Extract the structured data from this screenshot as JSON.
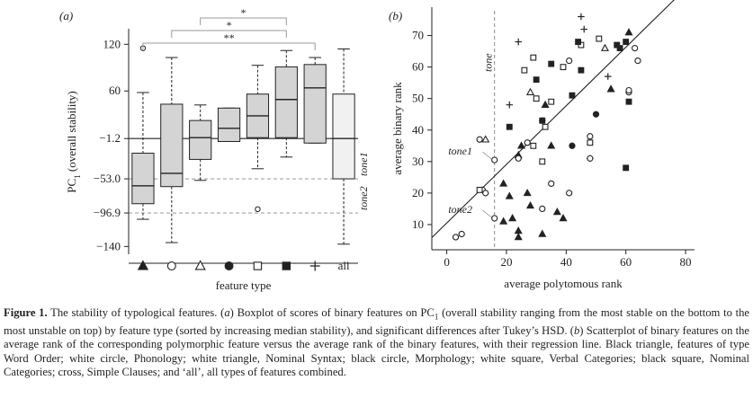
{
  "figure": {
    "caption": {
      "label": "Figure 1.",
      "t1": "The stability of typological features. (",
      "a": "a",
      "t2": ") Boxplot of scores of binary features on PC",
      "sub": "1",
      "t3": " (overall stability ranging from the most stable on the bottom to the most unstable on top) by feature type (sorted by increasing median stability), and significant differences after Tukey’s HSD. (",
      "b": "b",
      "t4": ") Scatterplot of binary features on the average rank of the corresponding polymorphic feature versus the average rank of the binary features, with their regression line. Black triangle, features of type Word Order; white circle, Phonology; white triangle, Nominal Syntax; black circle, Morphology; white square, Verbal Categories; black square, Nominal Categories; cross, Simple Clauses; and ‘all’, all types of features combined."
    },
    "colors": {
      "box": "#d4d4d4",
      "box_all": "#f1f1f1",
      "ink": "#222222",
      "grey": "#999999",
      "dashed": "#888888"
    }
  },
  "chart_data": [
    {
      "type": "box",
      "panel_label": "(a)",
      "xlabel": "feature type",
      "ylabel_main": "PC",
      "ylabel_sub": "1",
      "ylabel_rest": " (overall stability)",
      "yticks": [
        120,
        60,
        -1.2,
        -53.0,
        -96.9,
        -140
      ],
      "ytick_labels": [
        "120",
        "60",
        "−1.2",
        "−53.0",
        "−96.9",
        "−140"
      ],
      "ylim": [
        -150,
        140
      ],
      "categories": [
        "black-triangle",
        "white-circle",
        "white-triangle",
        "black-circle",
        "white-square",
        "black-square",
        "cross",
        "all"
      ],
      "category_labels": [
        "",
        "",
        "",
        "",
        "",
        "",
        "",
        "all"
      ],
      "boxes": [
        {
          "whisker_low": -105,
          "q1": -85,
          "median": -62,
          "q3": -20,
          "whisker_high": 58,
          "outliers": [
            115
          ]
        },
        {
          "whisker_low": -135,
          "q1": -63,
          "median": -46,
          "q3": 43,
          "whisker_high": 103,
          "outliers": []
        },
        {
          "whisker_low": -55,
          "q1": -28,
          "median": 0,
          "q3": 22,
          "whisker_high": 42,
          "outliers": []
        },
        {
          "whisker_low": -5,
          "q1": -5,
          "median": 12,
          "q3": 38,
          "whisker_high": 38,
          "outliers": []
        },
        {
          "whisker_low": -40,
          "q1": 0,
          "median": 28,
          "q3": 56,
          "whisker_high": 93,
          "outliers": [
            -92
          ]
        },
        {
          "whisker_low": -25,
          "q1": 0,
          "median": 49,
          "q3": 91,
          "whisker_high": 112,
          "outliers": []
        },
        {
          "whisker_low": -7,
          "q1": -7,
          "median": 64,
          "q3": 94,
          "whisker_high": 103,
          "outliers": []
        },
        {
          "whisker_low": -137,
          "q1": -53,
          "median": -1.2,
          "q3": 56,
          "whisker_high": 114,
          "outliers": []
        }
      ],
      "reference_lines": [
        {
          "value": -1.2,
          "style": "solid",
          "label": ""
        },
        {
          "value": -53.0,
          "style": "dashed",
          "label": "tone1"
        },
        {
          "value": -96.9,
          "style": "dashed",
          "label": "tone2"
        }
      ],
      "significance_brackets": [
        {
          "from": 2,
          "to": 5,
          "label": "*"
        },
        {
          "from": 1,
          "to": 5,
          "label": "*"
        },
        {
          "from": 0,
          "to": 6,
          "label": "**"
        }
      ]
    },
    {
      "type": "scatter",
      "panel_label": "(b)",
      "xlabel": "average polytomous rank",
      "ylabel": "average binary rank",
      "xlim": [
        -5,
        83
      ],
      "ylim": [
        2,
        79
      ],
      "xticks": [
        0,
        20,
        40,
        60,
        80
      ],
      "yticks": [
        10,
        20,
        30,
        40,
        50,
        60,
        70
      ],
      "regression": {
        "intercept": 10.5,
        "slope": 0.93
      },
      "vline": {
        "x": 16,
        "label": "tone"
      },
      "annotations": [
        {
          "text": "tone1",
          "x": 16.2,
          "y": 30.5,
          "anchor": "left"
        },
        {
          "text": "tone2",
          "x": 16.2,
          "y": 12,
          "anchor": "left"
        }
      ],
      "points": [
        {
          "x": 45,
          "y": 76,
          "m": "cross"
        },
        {
          "x": 46,
          "y": 72,
          "m": "cross"
        },
        {
          "x": 24,
          "y": 68,
          "m": "cross"
        },
        {
          "x": 54,
          "y": 57,
          "m": "cross"
        },
        {
          "x": 21,
          "y": 48,
          "m": "cross"
        },
        {
          "x": 48,
          "y": 31,
          "m": "cross"
        },
        {
          "x": 61,
          "y": 71,
          "m": "black-triangle"
        },
        {
          "x": 33,
          "y": 48,
          "m": "black-triangle"
        },
        {
          "x": 55,
          "y": 53,
          "m": "black-triangle"
        },
        {
          "x": 25,
          "y": 35,
          "m": "black-triangle"
        },
        {
          "x": 35,
          "y": 35,
          "m": "black-triangle"
        },
        {
          "x": 24,
          "y": 32,
          "m": "black-triangle"
        },
        {
          "x": 19,
          "y": 23,
          "m": "black-triangle"
        },
        {
          "x": 21,
          "y": 19,
          "m": "black-triangle"
        },
        {
          "x": 27,
          "y": 20,
          "m": "black-triangle"
        },
        {
          "x": 28,
          "y": 16,
          "m": "black-triangle"
        },
        {
          "x": 19,
          "y": 11,
          "m": "black-triangle"
        },
        {
          "x": 22,
          "y": 12,
          "m": "black-triangle"
        },
        {
          "x": 24,
          "y": 8,
          "m": "black-triangle"
        },
        {
          "x": 24,
          "y": 6,
          "m": "black-triangle"
        },
        {
          "x": 32,
          "y": 7,
          "m": "black-triangle"
        },
        {
          "x": 37,
          "y": 14,
          "m": "black-triangle"
        },
        {
          "x": 39,
          "y": 12,
          "m": "black-triangle"
        },
        {
          "x": 63,
          "y": 66,
          "m": "white-circle"
        },
        {
          "x": 41,
          "y": 62,
          "m": "white-circle"
        },
        {
          "x": 64,
          "y": 62,
          "m": "white-circle"
        },
        {
          "x": 61,
          "y": 52,
          "m": "white-circle"
        },
        {
          "x": 61,
          "y": 52.6,
          "m": "white-circle"
        },
        {
          "x": 32,
          "y": 43,
          "m": "white-circle"
        },
        {
          "x": 48,
          "y": 38,
          "m": "white-circle"
        },
        {
          "x": 48,
          "y": 31,
          "m": "white-circle"
        },
        {
          "x": 27,
          "y": 36,
          "m": "white-circle"
        },
        {
          "x": 11,
          "y": 37,
          "m": "white-circle"
        },
        {
          "x": 24,
          "y": 31,
          "m": "white-circle"
        },
        {
          "x": 16,
          "y": 30.5,
          "m": "white-circle"
        },
        {
          "x": 16,
          "y": 12,
          "m": "white-circle"
        },
        {
          "x": 12,
          "y": 21,
          "m": "white-circle"
        },
        {
          "x": 35,
          "y": 23,
          "m": "white-circle"
        },
        {
          "x": 41,
          "y": 20,
          "m": "white-circle"
        },
        {
          "x": 32,
          "y": 15,
          "m": "white-circle"
        },
        {
          "x": 5,
          "y": 7,
          "m": "white-circle"
        },
        {
          "x": 3,
          "y": 6,
          "m": "white-circle"
        },
        {
          "x": 13,
          "y": 20,
          "m": "white-circle"
        },
        {
          "x": 28,
          "y": 52,
          "m": "white-triangle"
        },
        {
          "x": 13,
          "y": 37,
          "m": "white-triangle"
        },
        {
          "x": 53,
          "y": 66,
          "m": "white-triangle"
        },
        {
          "x": 50,
          "y": 45,
          "m": "black-circle"
        },
        {
          "x": 42,
          "y": 35,
          "m": "black-circle"
        },
        {
          "x": 51,
          "y": 69,
          "m": "white-square"
        },
        {
          "x": 45,
          "y": 67,
          "m": "white-square"
        },
        {
          "x": 26,
          "y": 59,
          "m": "white-square"
        },
        {
          "x": 39,
          "y": 60,
          "m": "white-square"
        },
        {
          "x": 29,
          "y": 63,
          "m": "white-square"
        },
        {
          "x": 35,
          "y": 49,
          "m": "white-square"
        },
        {
          "x": 30,
          "y": 50,
          "m": "white-square"
        },
        {
          "x": 33,
          "y": 41,
          "m": "white-square"
        },
        {
          "x": 29,
          "y": 35,
          "m": "white-square"
        },
        {
          "x": 48,
          "y": 36,
          "m": "white-square"
        },
        {
          "x": 32,
          "y": 30,
          "m": "white-square"
        },
        {
          "x": 11,
          "y": 21,
          "m": "white-square"
        },
        {
          "x": 60,
          "y": 68,
          "m": "black-square"
        },
        {
          "x": 44,
          "y": 68,
          "m": "black-square"
        },
        {
          "x": 57,
          "y": 67,
          "m": "black-square"
        },
        {
          "x": 58,
          "y": 66,
          "m": "black-square"
        },
        {
          "x": 30,
          "y": 56,
          "m": "black-square"
        },
        {
          "x": 45,
          "y": 59,
          "m": "black-square"
        },
        {
          "x": 35,
          "y": 61,
          "m": "black-square"
        },
        {
          "x": 42,
          "y": 51,
          "m": "black-square"
        },
        {
          "x": 61,
          "y": 49,
          "m": "black-square"
        },
        {
          "x": 32,
          "y": 43,
          "m": "black-square"
        },
        {
          "x": 21,
          "y": 41,
          "m": "black-square"
        },
        {
          "x": 60,
          "y": 28,
          "m": "black-square"
        }
      ]
    }
  ]
}
